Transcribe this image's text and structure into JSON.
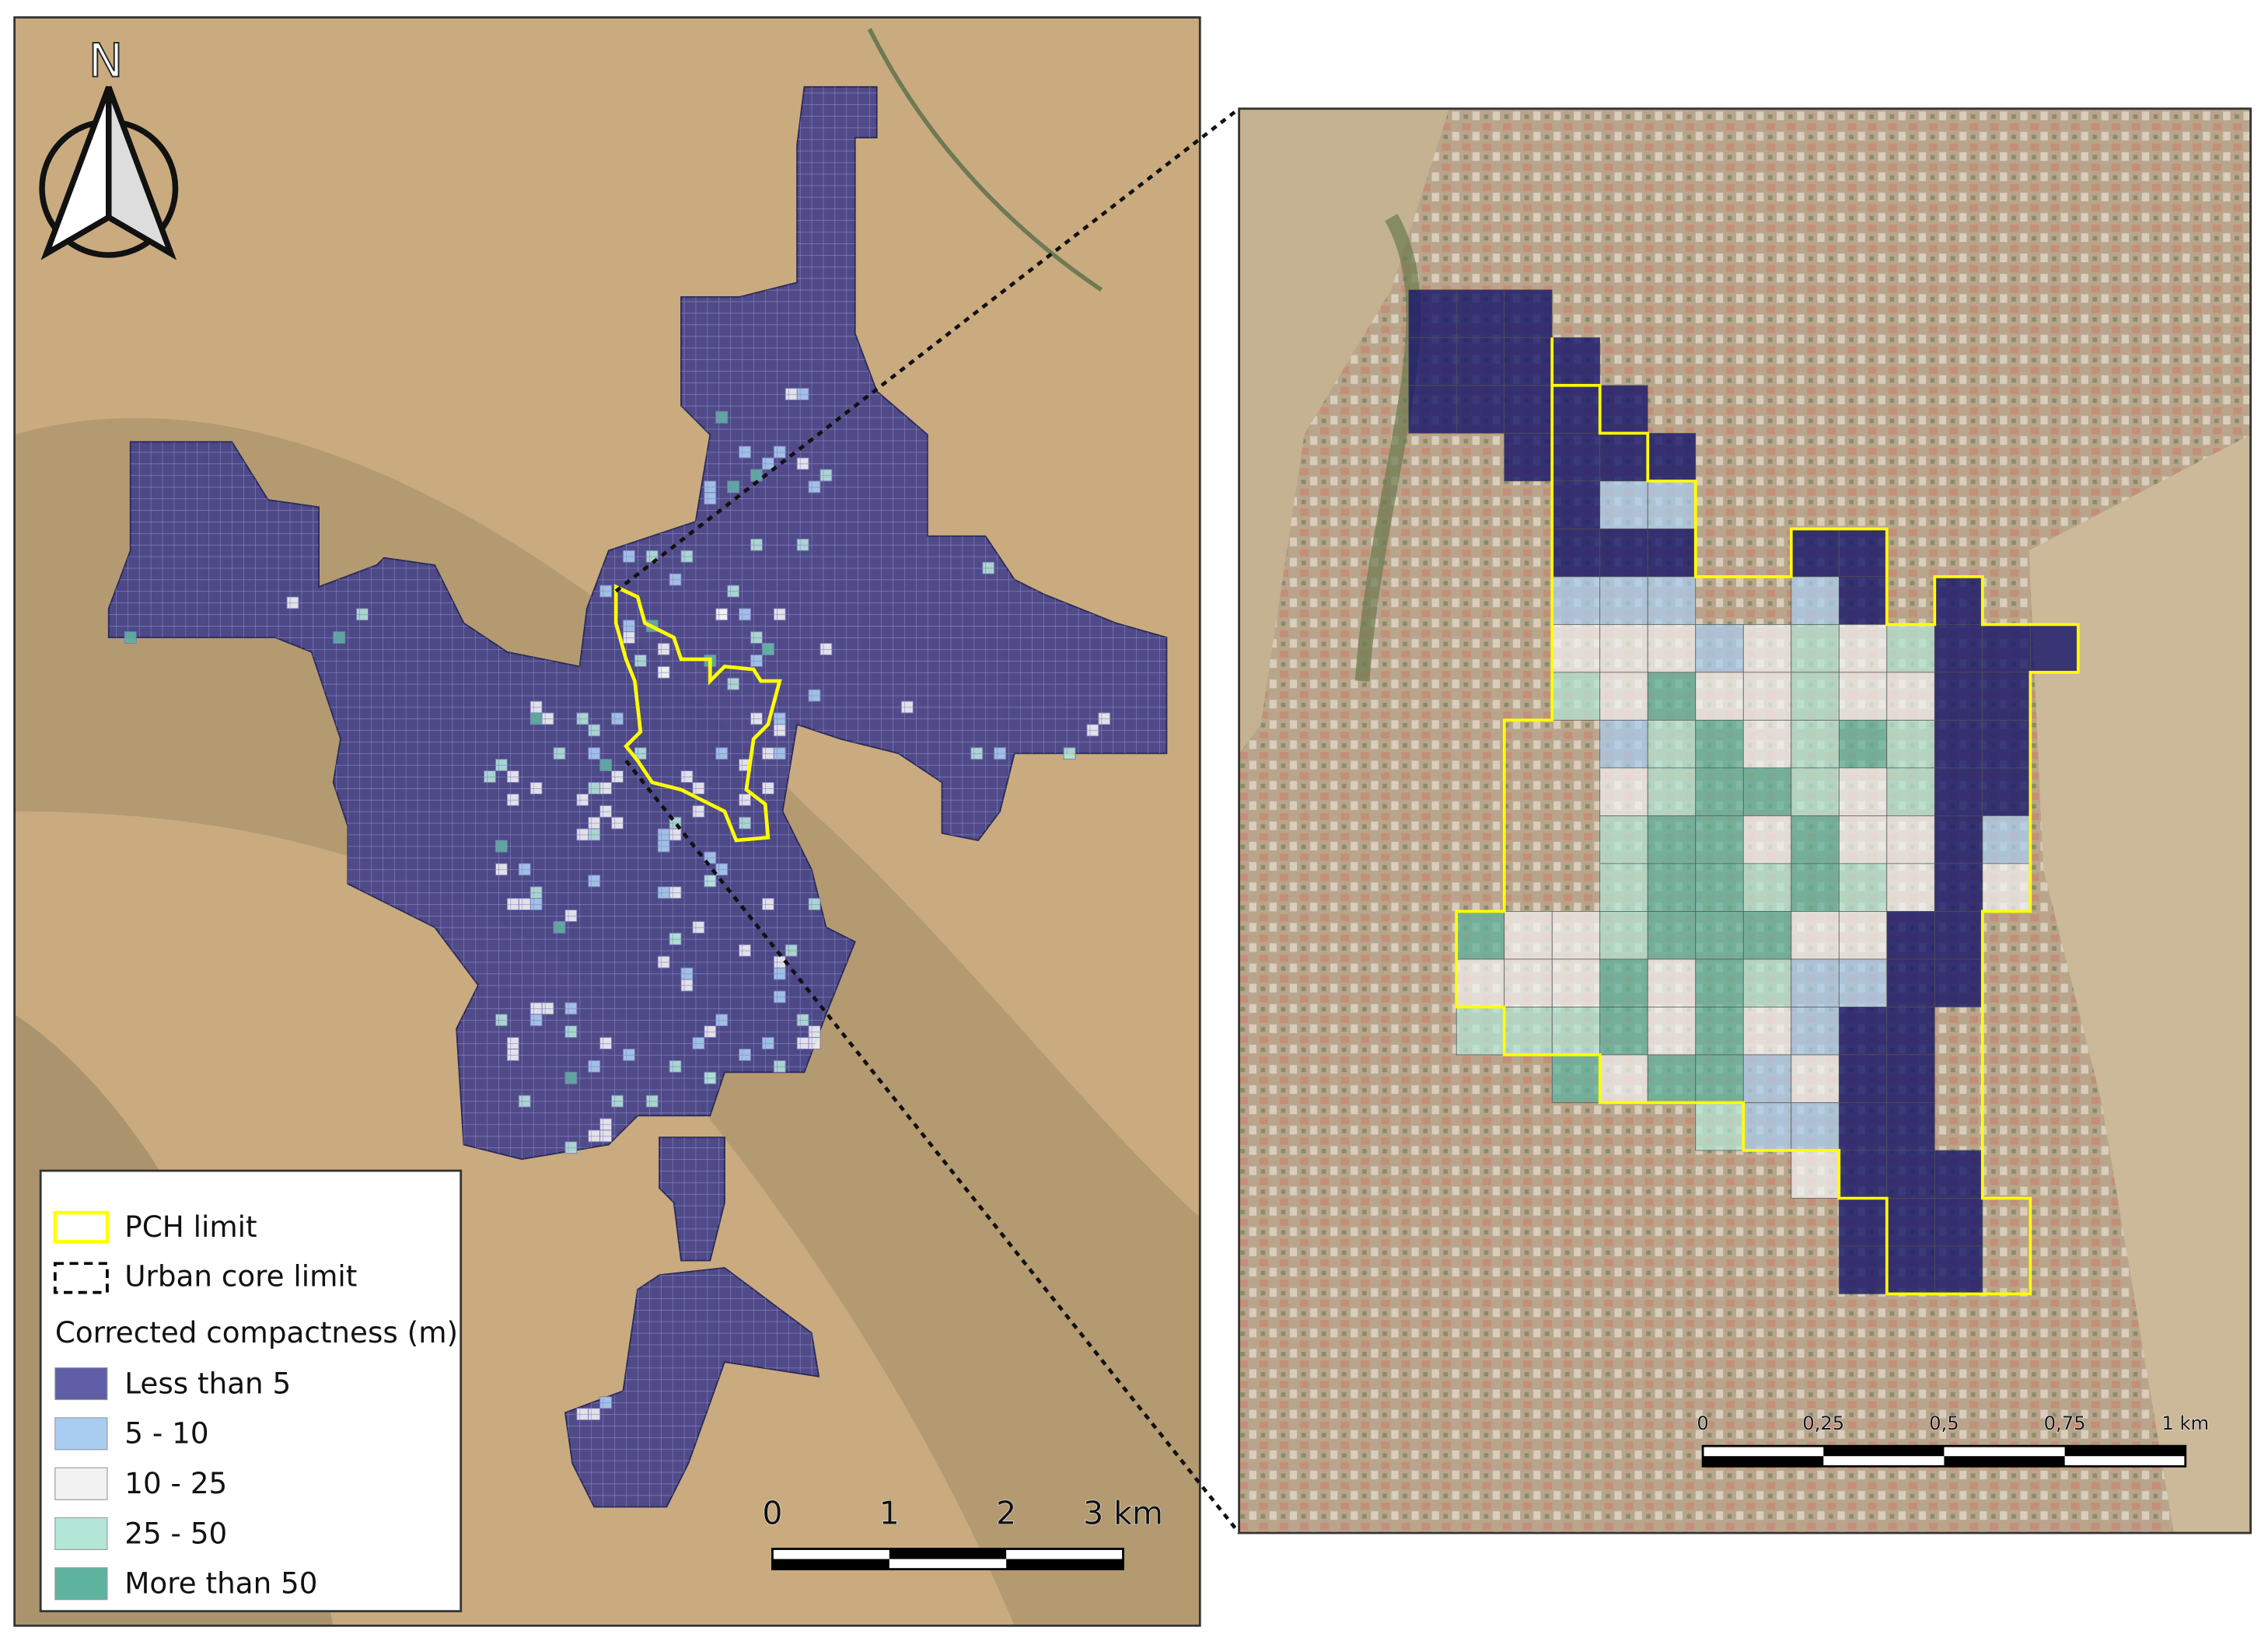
{
  "north_label": "N",
  "legend": {
    "lines": [
      {
        "label": "PCH limit",
        "color": "#ffff00"
      },
      {
        "label": "Urban core limit",
        "color": "#000000"
      }
    ],
    "title": "Corrected compactness (m)",
    "classes": [
      {
        "label": "Less than 5",
        "color": "#5f5ea6"
      },
      {
        "label": "5 - 10",
        "color": "#a9cdf0"
      },
      {
        "label": "10 - 25",
        "color": "#f2f2f2"
      },
      {
        "label": "25 - 50",
        "color": "#b3e6d6"
      },
      {
        "label": "More than 50",
        "color": "#5db39e"
      }
    ]
  },
  "overview_scale": {
    "labels": [
      "0",
      "1",
      "2",
      "3 km"
    ]
  },
  "inset_scale": {
    "labels": [
      "0",
      "0,25",
      "0,5",
      "0,75",
      "1 km"
    ]
  }
}
